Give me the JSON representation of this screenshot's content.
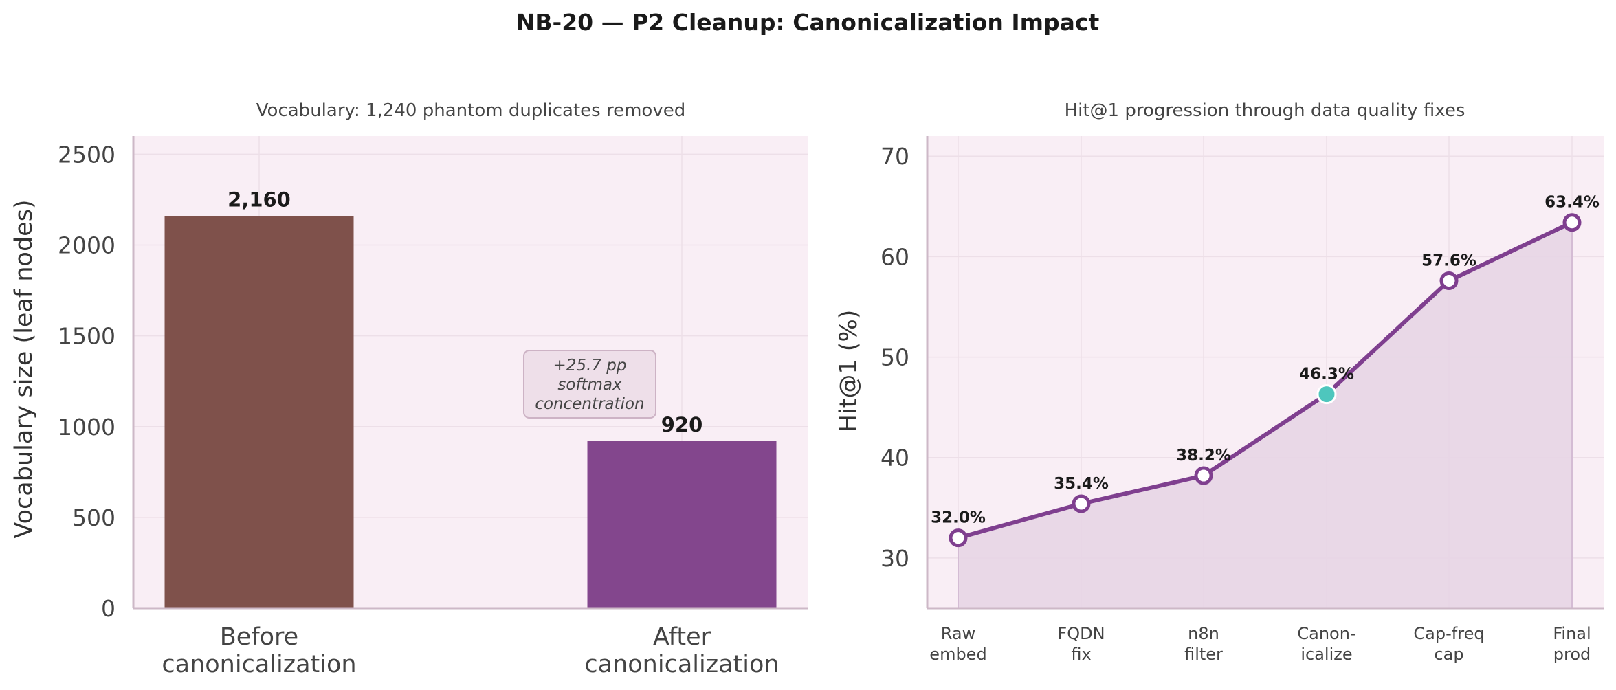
{
  "figure": {
    "title": "NB-20 — P2 Cleanup: Canonicalization Impact"
  },
  "colors": {
    "panel_bg": "#f9eef5",
    "grid": "#eddfe8",
    "spine": "#cdb8c7",
    "tick_text": "#444444",
    "before_bar": "#7f514b",
    "after_bar": "#83468d",
    "line": "#7f3f8f",
    "highlight": "#4ec6bd",
    "area_fill": "#e7d5e6",
    "annotation_bg": "#eedfe9",
    "annotation_border": "#cdb3c5"
  },
  "chart_data": [
    {
      "type": "bar",
      "title": "Vocabulary: 1,240 phantom duplicates removed",
      "ylabel": "Vocabulary size (leaf nodes)",
      "xlabel": "",
      "categories": [
        "Before\ncanonicalization",
        "After\ncanonicalization"
      ],
      "values": [
        2160,
        920
      ],
      "value_labels": [
        "2,160",
        "920"
      ],
      "yticks": [
        0,
        500,
        1000,
        1500,
        2000,
        2500
      ],
      "ylim": [
        0,
        2600
      ],
      "grid": true,
      "annotation": "+25.7 pp\nsoftmax\nconcentration"
    },
    {
      "type": "area",
      "title": "Hit@1 progression through data quality fixes",
      "ylabel": "Hit@1 (%)",
      "xlabel": "",
      "categories": [
        "Raw\nembed",
        "FQDN\nfix",
        "n8n\nfilter",
        "Canon-\nicalize",
        "Cap-freq\ncap",
        "Final\nprod"
      ],
      "values": [
        32.0,
        35.4,
        38.2,
        46.3,
        57.6,
        63.4
      ],
      "value_labels": [
        "32.0%",
        "35.4%",
        "38.2%",
        "46.3%",
        "57.6%",
        "63.4%"
      ],
      "highlight_index": 3,
      "yticks": [
        30,
        40,
        50,
        60,
        70
      ],
      "ylim": [
        25,
        72
      ],
      "grid": true
    }
  ]
}
